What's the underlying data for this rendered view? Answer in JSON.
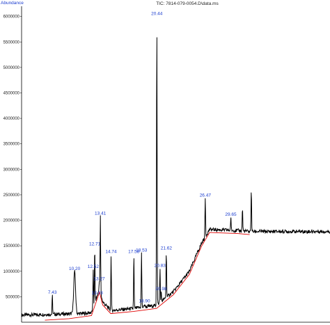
{
  "chart_data": {
    "type": "line",
    "title": "TIC: 7814-079-0054.D\\data.ms",
    "ylabel": "Abundance",
    "xlabel": "",
    "ylim": [
      0,
      6200000
    ],
    "xlim": [
      3.6,
      42.0
    ],
    "y_ticks": [
      500000,
      1000000,
      1500000,
      2000000,
      2500000,
      3000000,
      3500000,
      4000000,
      4500000,
      5000000,
      5500000,
      6000000
    ],
    "y_tick_labels": [
      "500000",
      "1000000",
      "1500000",
      "2000000",
      "2500000",
      "3000000",
      "3500000",
      "4000000",
      "4500000",
      "5000000",
      "5500000",
      "6000000"
    ],
    "grid": false,
    "colors": {
      "trace": "#000000",
      "baseline": "#e00000",
      "labels": "#1a3ccf",
      "ylabel": "#1a3ccf"
    },
    "baseline": [
      [
        6.5,
        0
      ],
      [
        9.5,
        30000
      ],
      [
        12.3,
        90000
      ],
      [
        13.3,
        550000
      ],
      [
        13.7,
        300000
      ],
      [
        14.7,
        130000
      ],
      [
        17.5,
        170000
      ],
      [
        20.4,
        230000
      ],
      [
        22.5,
        500000
      ],
      [
        24.5,
        900000
      ],
      [
        26.0,
        1450000
      ],
      [
        27.0,
        1720000
      ],
      [
        30.5,
        1700000
      ],
      [
        32.0,
        1680000
      ]
    ],
    "peaks": [
      {
        "label": "7.43",
        "rt": 7.43,
        "height": 530000
      },
      {
        "label": "10.20",
        "rt": 10.2,
        "height": 1000000
      },
      {
        "label": "12.52",
        "rt": 12.52,
        "height": 1040000
      },
      {
        "label": "12.71",
        "rt": 12.71,
        "height": 1480000
      },
      {
        "label": "13.03",
        "rt": 13.03,
        "height": 520000
      },
      {
        "label": "13.27",
        "rt": 13.27,
        "height": 800000
      },
      {
        "label": "13.41",
        "rt": 13.41,
        "height": 2080000
      },
      {
        "label": "14.74",
        "rt": 14.74,
        "height": 1330000
      },
      {
        "label": "17.58",
        "rt": 17.58,
        "height": 1330000
      },
      {
        "label": "18.53",
        "rt": 18.53,
        "height": 1360000
      },
      {
        "label": "18.90",
        "rt": 18.9,
        "height": 360000
      },
      {
        "label": "20.44",
        "rt": 20.44,
        "height": 6000000
      },
      {
        "label": "20.83",
        "rt": 20.83,
        "height": 1060000
      },
      {
        "label": "20.98",
        "rt": 20.98,
        "height": 600000
      },
      {
        "label": "21.62",
        "rt": 21.62,
        "height": 1400000
      },
      {
        "label": "26.47",
        "rt": 26.47,
        "height": 2440000
      },
      {
        "label": "29.65",
        "rt": 29.65,
        "height": 2060000
      }
    ],
    "unlabeled_peaks": [
      {
        "rt": 31.1,
        "height": 2250000
      },
      {
        "rt": 32.2,
        "height": 2620000
      }
    ]
  }
}
